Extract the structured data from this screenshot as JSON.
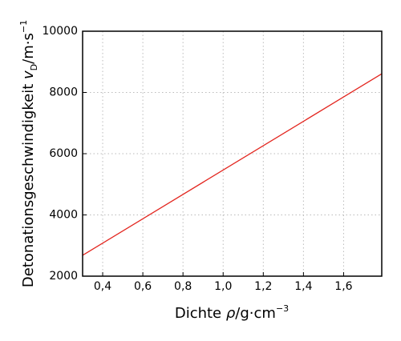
{
  "chart_data": {
    "type": "line",
    "xlabel": [
      "Dichte  ",
      "ρ",
      "/g·cm",
      "−3"
    ],
    "ylabel": [
      "Detonationsgeschwindigkeit  ",
      "v",
      "D",
      "/m·s",
      "−1"
    ],
    "x": [
      0.3,
      1.79
    ],
    "series": [
      {
        "name": "vD",
        "color": "#e3261f",
        "values": [
          2680,
          8610
        ]
      }
    ],
    "xlim": [
      0.3,
      1.79
    ],
    "xticks": [
      {
        "value": 0.4,
        "label": "0,4"
      },
      {
        "value": 0.6,
        "label": "0,6"
      },
      {
        "value": 0.8,
        "label": "0,8"
      },
      {
        "value": 1.0,
        "label": "1,0"
      },
      {
        "value": 1.2,
        "label": "1,2"
      },
      {
        "value": 1.4,
        "label": "1,4"
      },
      {
        "value": 1.6,
        "label": "1,6"
      }
    ],
    "ylim": [
      2000,
      10000
    ],
    "yticks": [
      2000,
      4000,
      6000,
      8000,
      10000
    ],
    "grid": true
  }
}
